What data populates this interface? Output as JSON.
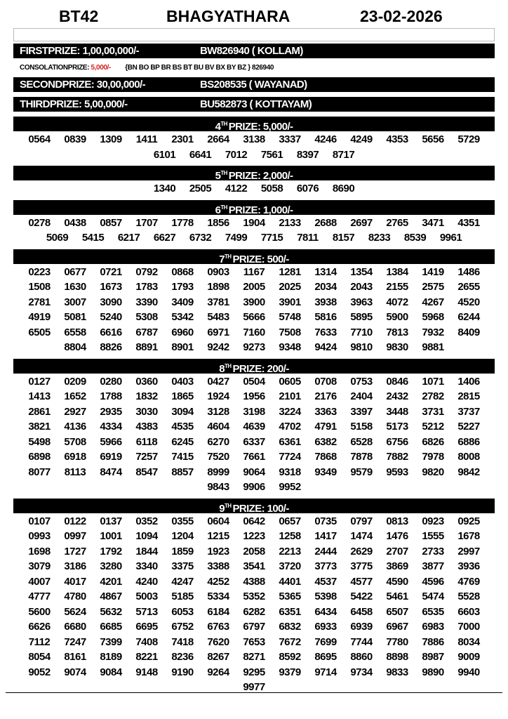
{
  "header": {
    "code": "BT42",
    "name": "BHAGYATHARA",
    "date": "23-02-2026"
  },
  "top_prizes": [
    {
      "label": "FIRSTPRIZE: 1,00,00,000/-",
      "ticket": "BW826940 ( KOLLAM)"
    },
    {
      "label": "SECONDPRIZE: 30,00,000/-",
      "ticket": "BS208535 ( WAYANAD)"
    },
    {
      "label": "THIRDPRIZE: 5,00,000/-",
      "ticket": "BU582873 ( KOTTAYAM)"
    }
  ],
  "consolation": {
    "label": "CONSOLATIONPRIZE:",
    "amount": "5,000/-",
    "series": "{BN BO BP BR BS BT BU BV BX BY BZ } 826940",
    "amount_color": "#d42020"
  },
  "prizes": [
    {
      "ordinal": "4",
      "suffix": "TH",
      "title": "PRIZE: 5,000/-",
      "rows": [
        [
          "0564",
          "0839",
          "1309",
          "1411",
          "2301",
          "2664",
          "3138",
          "3337",
          "4246",
          "4249",
          "4353",
          "5656",
          "5729"
        ],
        [
          "6101",
          "6641",
          "7012",
          "7561",
          "8397",
          "8717"
        ]
      ]
    },
    {
      "ordinal": "5",
      "suffix": "TH",
      "title": "PRIZE: 2,000/-",
      "rows": [
        [
          "1340",
          "2505",
          "4122",
          "5058",
          "6076",
          "8690"
        ]
      ]
    },
    {
      "ordinal": "6",
      "suffix": "TH",
      "title": "PRIZE: 1,000/-",
      "rows": [
        [
          "0278",
          "0438",
          "0857",
          "1707",
          "1778",
          "1856",
          "1904",
          "2133",
          "2688",
          "2697",
          "2765",
          "3471",
          "4351"
        ],
        [
          "5069",
          "5415",
          "6217",
          "6627",
          "6732",
          "7499",
          "7715",
          "7811",
          "8157",
          "8233",
          "8539",
          "9961"
        ]
      ]
    },
    {
      "ordinal": "7",
      "suffix": "TH",
      "title": "PRIZE: 500/-",
      "rows": [
        [
          "0223",
          "0677",
          "0721",
          "0792",
          "0868",
          "0903",
          "1167",
          "1281",
          "1314",
          "1354",
          "1384",
          "1419",
          "1486"
        ],
        [
          "1508",
          "1630",
          "1673",
          "1783",
          "1793",
          "1898",
          "2005",
          "2025",
          "2034",
          "2043",
          "2155",
          "2575",
          "2655"
        ],
        [
          "2781",
          "3007",
          "3090",
          "3390",
          "3409",
          "3781",
          "3900",
          "3901",
          "3938",
          "3963",
          "4072",
          "4267",
          "4520"
        ],
        [
          "4919",
          "5081",
          "5240",
          "5308",
          "5342",
          "5483",
          "5666",
          "5748",
          "5816",
          "5895",
          "5900",
          "5968",
          "6244"
        ],
        [
          "6505",
          "6558",
          "6616",
          "6787",
          "6960",
          "6971",
          "7160",
          "7508",
          "7633",
          "7710",
          "7813",
          "7932",
          "8409"
        ],
        [
          "8804",
          "8826",
          "8891",
          "8901",
          "9242",
          "9273",
          "9348",
          "9424",
          "9810",
          "9830",
          "9881"
        ]
      ]
    },
    {
      "ordinal": "8",
      "suffix": "TH",
      "title": "PRIZE: 200/-",
      "rows": [
        [
          "0127",
          "0209",
          "0280",
          "0360",
          "0403",
          "0427",
          "0504",
          "0605",
          "0708",
          "0753",
          "0846",
          "1071",
          "1406"
        ],
        [
          "1413",
          "1652",
          "1788",
          "1832",
          "1865",
          "1924",
          "1956",
          "2101",
          "2176",
          "2404",
          "2432",
          "2782",
          "2815"
        ],
        [
          "2861",
          "2927",
          "2935",
          "3030",
          "3094",
          "3128",
          "3198",
          "3224",
          "3363",
          "3397",
          "3448",
          "3731",
          "3737"
        ],
        [
          "3821",
          "4136",
          "4334",
          "4383",
          "4535",
          "4604",
          "4639",
          "4702",
          "4791",
          "5158",
          "5173",
          "5212",
          "5227"
        ],
        [
          "5498",
          "5708",
          "5966",
          "6118",
          "6245",
          "6270",
          "6337",
          "6361",
          "6382",
          "6528",
          "6756",
          "6826",
          "6886"
        ],
        [
          "6898",
          "6918",
          "6919",
          "7257",
          "7415",
          "7520",
          "7661",
          "7724",
          "7868",
          "7878",
          "7882",
          "7978",
          "8008"
        ],
        [
          "8077",
          "8113",
          "8474",
          "8547",
          "8857",
          "8999",
          "9064",
          "9318",
          "9349",
          "9579",
          "9593",
          "9820",
          "9842"
        ],
        [
          "9843",
          "9906",
          "9952"
        ]
      ]
    },
    {
      "ordinal": "9",
      "suffix": "TH",
      "title": "PRIZE: 100/-",
      "rows": [
        [
          "0107",
          "0122",
          "0137",
          "0352",
          "0355",
          "0604",
          "0642",
          "0657",
          "0735",
          "0797",
          "0813",
          "0923",
          "0925"
        ],
        [
          "0993",
          "0997",
          "1001",
          "1094",
          "1204",
          "1215",
          "1223",
          "1258",
          "1417",
          "1474",
          "1476",
          "1555",
          "1678"
        ],
        [
          "1698",
          "1727",
          "1792",
          "1844",
          "1859",
          "1923",
          "2058",
          "2213",
          "2444",
          "2629",
          "2707",
          "2733",
          "2997"
        ],
        [
          "3079",
          "3186",
          "3280",
          "3340",
          "3375",
          "3388",
          "3541",
          "3720",
          "3773",
          "3775",
          "3869",
          "3877",
          "3936"
        ],
        [
          "4007",
          "4017",
          "4201",
          "4240",
          "4247",
          "4252",
          "4388",
          "4401",
          "4537",
          "4577",
          "4590",
          "4596",
          "4769"
        ],
        [
          "4777",
          "4780",
          "4867",
          "5003",
          "5185",
          "5334",
          "5352",
          "5365",
          "5398",
          "5422",
          "5461",
          "5474",
          "5528"
        ],
        [
          "5600",
          "5624",
          "5632",
          "5713",
          "6053",
          "6184",
          "6282",
          "6351",
          "6434",
          "6458",
          "6507",
          "6535",
          "6603"
        ],
        [
          "6626",
          "6680",
          "6685",
          "6695",
          "6752",
          "6763",
          "6797",
          "6832",
          "6933",
          "6939",
          "6967",
          "6983",
          "7000"
        ],
        [
          "7112",
          "7247",
          "7399",
          "7408",
          "7418",
          "7620",
          "7653",
          "7672",
          "7699",
          "7744",
          "7780",
          "7886",
          "8034"
        ],
        [
          "8054",
          "8161",
          "8189",
          "8221",
          "8236",
          "8267",
          "8271",
          "8592",
          "8695",
          "8860",
          "8898",
          "8987",
          "9009"
        ],
        [
          "9052",
          "9074",
          "9084",
          "9148",
          "9190",
          "9264",
          "9295",
          "9379",
          "9714",
          "9734",
          "9833",
          "9890",
          "9940"
        ],
        [
          "9977"
        ]
      ]
    }
  ]
}
